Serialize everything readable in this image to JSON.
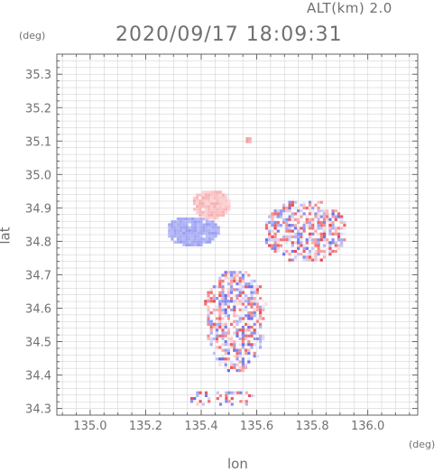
{
  "header": {
    "alt_label": "ALT(km) 2.0",
    "datetime": "2020/09/17 18:09:31"
  },
  "chart_data": {
    "type": "heatmap",
    "title": "2020/09/17 18:09:31",
    "xlabel": "lon",
    "ylabel": "lat",
    "x_unit": "(deg)",
    "y_unit": "(deg)",
    "xlim": [
      134.88,
      136.18
    ],
    "ylim": [
      34.28,
      35.36
    ],
    "xticks": [
      "135.0",
      "135.2",
      "135.4",
      "135.6",
      "135.8",
      "136.0"
    ],
    "yticks": [
      "34.3",
      "34.4",
      "34.5",
      "34.6",
      "34.7",
      "34.8",
      "34.9",
      "35.0",
      "35.1",
      "35.2",
      "35.3"
    ],
    "grid": true,
    "colors": {
      "positive": "#e8464f",
      "negative": "#5a63e6",
      "neutral": "#f2dede",
      "grid": "#cccccc",
      "axis": "#666666"
    },
    "regions": [
      {
        "name": "blue-blob",
        "lon": [
          135.27,
          135.46
        ],
        "lat": [
          34.79,
          34.88
        ],
        "value": -0.45
      },
      {
        "name": "pink-cap",
        "lon": [
          135.36,
          135.5
        ],
        "lat": [
          34.87,
          34.96
        ],
        "value": 0.25
      },
      {
        "name": "main-cluster",
        "lon": [
          135.4,
          135.64
        ],
        "lat": [
          34.41,
          34.72
        ],
        "value": 0.0
      },
      {
        "name": "east-patch",
        "lon": [
          135.62,
          135.92
        ],
        "lat": [
          34.74,
          34.93
        ],
        "value": 0.05
      },
      {
        "name": "south-tail",
        "lon": [
          135.34,
          135.6
        ],
        "lat": [
          34.31,
          34.36
        ],
        "value": 0.0
      },
      {
        "name": "north-dot",
        "lon": [
          135.55,
          135.58
        ],
        "lat": [
          35.1,
          35.12
        ],
        "value": 0.4
      }
    ]
  }
}
